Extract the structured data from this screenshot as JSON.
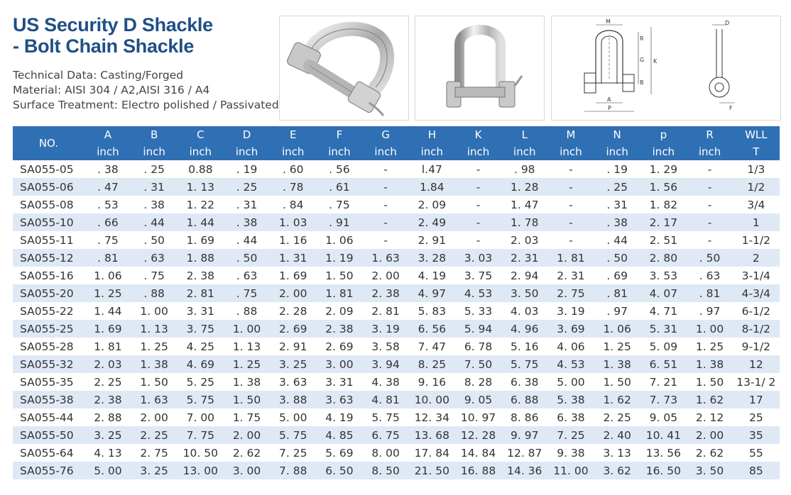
{
  "title": {
    "line1": "US Security D Shackle",
    "line2": "- Bolt Chain Shackle"
  },
  "specs": [
    "Technical Data: Casting/Forged",
    "Material: AISI 304 / A2,AISI 316 / A4",
    "Surface Treatment: Electro polished / Passivated"
  ],
  "diagram_labels": {
    "M": "M",
    "R": "R",
    "G": "G",
    "K": "K",
    "B": "B",
    "A": "A",
    "P": "P",
    "D": "D",
    "F": "F"
  },
  "table": {
    "no_header": "NO.",
    "columns": [
      "A",
      "B",
      "C",
      "D",
      "E",
      "F",
      "G",
      "H",
      "K",
      "L",
      "M",
      "N",
      "p",
      "R",
      "WLL"
    ],
    "units": [
      "inch",
      "inch",
      "inch",
      "inch",
      "inch",
      "inch",
      "inch",
      "inch",
      "inch",
      "inch",
      "inch",
      "inch",
      "inch",
      "inch",
      "T"
    ],
    "rows": [
      [
        "SA055-05",
        ". 38",
        ". 25",
        "0.88",
        ". 19",
        ". 60",
        ". 56",
        "-",
        "l.47",
        "-",
        ". 98",
        "-",
        ". 19",
        "1. 29",
        "-",
        "1/3"
      ],
      [
        "SA055-06",
        ". 47",
        ". 31",
        "1. 13",
        ". 25",
        ". 78",
        ". 61",
        "-",
        "1.84",
        "-",
        "1. 28",
        "-",
        ". 25",
        "1. 56",
        "-",
        "1/2"
      ],
      [
        "SA055-08",
        ". 53",
        ". 38",
        "1. 22",
        ". 31",
        ". 84",
        ". 75",
        "-",
        "2. 09",
        "-",
        "1. 47",
        "-",
        ". 31",
        "1. 82",
        "-",
        "3/4"
      ],
      [
        "SA055-10",
        ". 66",
        ". 44",
        "1. 44",
        ". 38",
        "1. 03",
        ". 91",
        "-",
        "2. 49",
        "-",
        "1. 78",
        "-",
        ". 38",
        "2. 17",
        "-",
        "1"
      ],
      [
        "SA055-11",
        ". 75",
        ". 50",
        "1. 69",
        ". 44",
        "1. 16",
        "1. 06",
        "-",
        "2. 91",
        "-",
        "2. 03",
        "-",
        ". 44",
        "2. 51",
        "-",
        "1-1/2"
      ],
      [
        "SA055-12",
        ". 81",
        ". 63",
        "1. 88",
        ". 50",
        "1. 31",
        "1. 19",
        "1. 63",
        "3. 28",
        "3. 03",
        "2. 31",
        "1. 81",
        ". 50",
        "2. 80",
        ". 50",
        "2"
      ],
      [
        "SA055-16",
        "1. 06",
        ". 75",
        "2. 38",
        ". 63",
        "1. 69",
        "1. 50",
        "2. 00",
        "4. 19",
        "3. 75",
        "2. 94",
        "2. 31",
        ". 69",
        "3. 53",
        ". 63",
        "3-1/4"
      ],
      [
        "SA055-20",
        "1. 25",
        ". 88",
        "2. 81",
        ". 75",
        "2. 00",
        "1. 81",
        "2. 38",
        "4. 97",
        "4. 53",
        "3. 50",
        "2. 75",
        ". 81",
        "4. 07",
        ". 81",
        "4-3/4"
      ],
      [
        "SA055-22",
        "1. 44",
        "1. 00",
        "3. 31",
        ". 88",
        "2. 28",
        "2. 09",
        "2. 81",
        "5. 83",
        "5. 33",
        "4. 03",
        "3. 19",
        ". 97",
        "4. 71",
        ". 97",
        "6-1/2"
      ],
      [
        "SA055-25",
        "1. 69",
        "1. 13",
        "3. 75",
        "1. 00",
        "2. 69",
        "2. 38",
        "3. 19",
        "6. 56",
        "5. 94",
        "4. 96",
        "3. 69",
        "1. 06",
        "5. 31",
        "1. 00",
        "8-1/2"
      ],
      [
        "SA055-28",
        "1. 81",
        "1. 25",
        "4. 25",
        "1. 13",
        "2. 91",
        "2. 69",
        "3. 58",
        "7. 47",
        "6. 78",
        "5. 16",
        "4. 06",
        "1. 25",
        "5. 09",
        "1. 25",
        "9-1/2"
      ],
      [
        "SA055-32",
        "2. 03",
        "1. 38",
        "4. 69",
        "1. 25",
        "3. 25",
        "3. 00",
        "3. 94",
        "8. 25",
        "7. 50",
        "5. 75",
        "4. 53",
        "1. 38",
        "6. 51",
        "1. 38",
        "12"
      ],
      [
        "SA055-35",
        "2. 25",
        "1. 50",
        "5. 25",
        "1. 38",
        "3. 63",
        "3. 31",
        "4. 38",
        "9. 16",
        "8. 28",
        "6. 38",
        "5. 00",
        "1. 50",
        "7. 21",
        "1. 50",
        "13-1/ 2"
      ],
      [
        "SA055-38",
        "2. 38",
        "1. 63",
        "5. 75",
        "1. 50",
        "3. 88",
        "3. 63",
        "4. 81",
        "10. 00",
        "9. 05",
        "6. 88",
        "5. 38",
        "1. 62",
        "7. 73",
        "1. 62",
        "17"
      ],
      [
        "SA055-44",
        "2. 88",
        "2. 00",
        "7. 00",
        "1. 75",
        "5. 00",
        "4. 19",
        "5. 75",
        "12. 34",
        "10. 97",
        "8. 86",
        "6. 38",
        "2. 25",
        "9. 05",
        "2. 12",
        "25"
      ],
      [
        "SA055-50",
        "3. 25",
        "2. 25",
        "7. 75",
        "2. 00",
        "5. 75",
        "4. 85",
        "6. 75",
        "13. 68",
        "12. 28",
        "9. 97",
        "7. 25",
        "2. 40",
        "10. 41",
        "2. 00",
        "35"
      ],
      [
        "SA055-64",
        "4. 13",
        "2. 75",
        "10. 50",
        "2. 62",
        "7. 25",
        "5. 69",
        "8. 00",
        "17. 84",
        "14. 84",
        "12. 87",
        "9. 38",
        "3. 13",
        "13. 56",
        "2. 62",
        "55"
      ],
      [
        "SA055-76",
        "5. 00",
        "3. 25",
        "13. 00",
        "3. 00",
        "7. 88",
        "6. 50",
        "8. 50",
        "21. 50",
        "16. 88",
        "14. 36",
        "11. 00",
        "3. 62",
        "16. 50",
        "3. 50",
        "85"
      ]
    ]
  }
}
